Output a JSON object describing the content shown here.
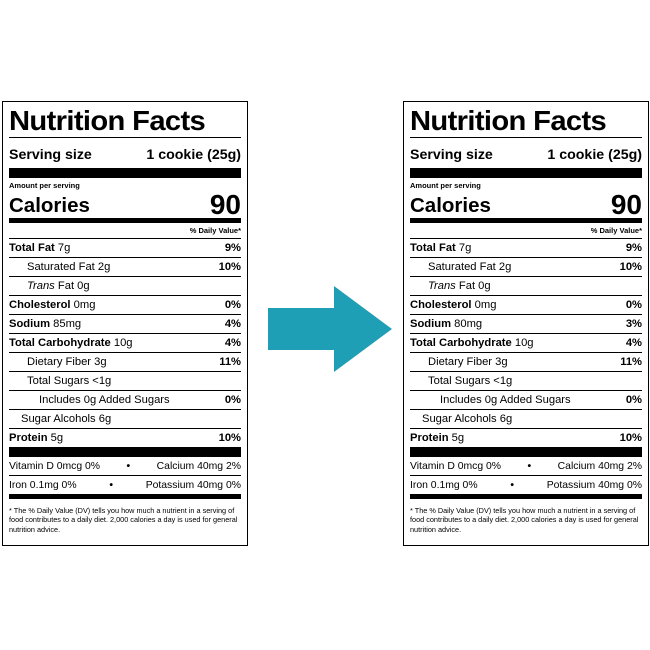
{
  "arrow_color": "#1e9fb5",
  "labels": [
    {
      "title": "Nutrition Facts",
      "serving_label": "Serving size",
      "serving_value": "1 cookie (25g)",
      "amount_per_serving": "Amount per serving",
      "calories_label": "Calories",
      "calories_value": "90",
      "dv_header": "% Daily Value*",
      "total_fat": "Total Fat",
      "total_fat_amt": "7g",
      "total_fat_pct": "9%",
      "sat_fat": "Saturated Fat 2g",
      "sat_fat_pct": "10%",
      "trans_fat_word": "Trans",
      "trans_fat_rest": "Fat 0g",
      "cholesterol": "Cholesterol",
      "cholesterol_amt": "0mg",
      "cholesterol_pct": "0%",
      "sodium": "Sodium",
      "sodium_amt": "85mg",
      "sodium_pct": "4%",
      "carb": "Total Carbohydrate",
      "carb_amt": "10g",
      "carb_pct": "4%",
      "fiber": "Dietary Fiber 3g",
      "fiber_pct": "11%",
      "sugars": "Total Sugars <1g",
      "added_sugars": "Includes 0g Added Sugars",
      "added_sugars_pct": "0%",
      "sugar_alcohols": "Sugar Alcohols 6g",
      "protein": "Protein",
      "protein_amt": "5g",
      "protein_pct": "10%",
      "vitamin_d": "Vitamin D 0mcg 0%",
      "calcium": "Calcium 40mg 2%",
      "iron": "Iron 0.1mg 0%",
      "potassium": "Potassium 40mg 0%",
      "bullet": "•",
      "footnote": "* The % Daily Value (DV) tells you how much a nutrient in a serving of food contributes to a daily diet. 2,000 calories a day is used for general nutrition advice."
    },
    {
      "title": "Nutrition Facts",
      "serving_label": "Serving size",
      "serving_value": "1 cookie (25g)",
      "amount_per_serving": "Amount per serving",
      "calories_label": "Calories",
      "calories_value": "90",
      "dv_header": "% Daily Value*",
      "total_fat": "Total Fat",
      "total_fat_amt": "7g",
      "total_fat_pct": "9%",
      "sat_fat": "Saturated Fat 2g",
      "sat_fat_pct": "10%",
      "trans_fat_word": "Trans",
      "trans_fat_rest": "Fat 0g",
      "cholesterol": "Cholesterol",
      "cholesterol_amt": "0mg",
      "cholesterol_pct": "0%",
      "sodium": "Sodium",
      "sodium_amt": "80mg",
      "sodium_pct": "3%",
      "carb": "Total Carbohydrate",
      "carb_amt": "10g",
      "carb_pct": "4%",
      "fiber": "Dietary Fiber 3g",
      "fiber_pct": "11%",
      "sugars": "Total Sugars <1g",
      "added_sugars": "Includes 0g Added Sugars",
      "added_sugars_pct": "0%",
      "sugar_alcohols": "Sugar Alcohols 6g",
      "protein": "Protein",
      "protein_amt": "5g",
      "protein_pct": "10%",
      "vitamin_d": "Vitamin D 0mcg 0%",
      "calcium": "Calcium 40mg 2%",
      "iron": "Iron 0.1mg 0%",
      "potassium": "Potassium 40mg 0%",
      "bullet": "•",
      "footnote": "* The % Daily Value (DV) tells you how much a nutrient in a serving of food contributes to a daily diet. 2,000 calories a day is used for general nutrition advice."
    }
  ]
}
